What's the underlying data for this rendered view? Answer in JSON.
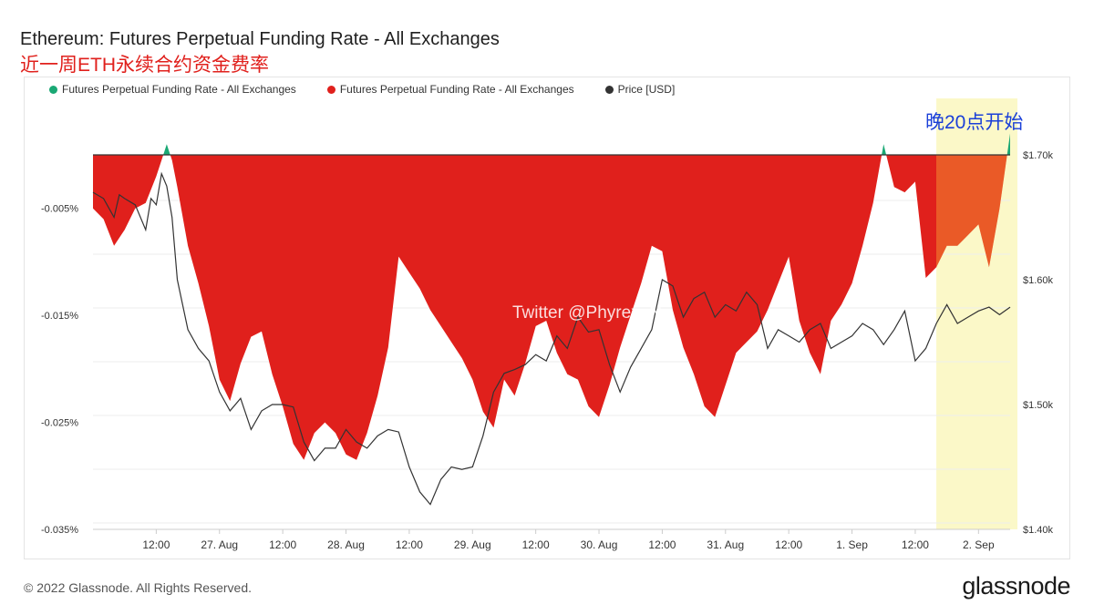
{
  "header": {
    "title": "Ethereum: Futures Perpetual Funding Rate - All Exchanges",
    "subtitle": "近一周ETH永续合约资金费率"
  },
  "chart_data": {
    "type": "area",
    "legend": [
      {
        "name": "Futures Perpetual Funding Rate - All Exchanges",
        "color": "#1aa874"
      },
      {
        "name": "Futures Perpetual Funding Rate - All Exchanges",
        "color": "#e0201c"
      },
      {
        "name": "Price [USD]",
        "color": "#333333"
      }
    ],
    "legend_position": "top-left",
    "x_tick_labels": [
      "12:00",
      "27. Aug",
      "12:00",
      "28. Aug",
      "12:00",
      "29. Aug",
      "12:00",
      "30. Aug",
      "12:00",
      "31. Aug",
      "12:00",
      "1. Sep",
      "12:00",
      "2. Sep"
    ],
    "y_left": {
      "ticks": [
        -0.005,
        -0.015,
        -0.025,
        -0.035
      ],
      "tick_labels": [
        "-0.005%",
        "-0.015%",
        "-0.025%",
        "-0.035%"
      ],
      "range": [
        -0.035,
        0.0
      ]
    },
    "y_right": {
      "ticks": [
        1700,
        1600,
        1500,
        1400
      ],
      "tick_labels": [
        "$1.70k",
        "$1.60k",
        "$1.50k",
        "$1.40k"
      ],
      "range": [
        1400,
        1700
      ]
    },
    "grid": true,
    "x_range_hours": [
      0,
      174
    ],
    "series": [
      {
        "name": "Futures Perpetual Funding Rate - All Exchanges",
        "unit": "%",
        "x_hours": [
          0,
          2,
          4,
          6,
          8,
          10,
          12,
          13,
          14,
          15,
          16,
          18,
          20,
          22,
          24,
          26,
          28,
          30,
          32,
          34,
          36,
          38,
          40,
          42,
          44,
          46,
          48,
          50,
          52,
          54,
          56,
          58,
          60,
          62,
          64,
          66,
          68,
          70,
          72,
          74,
          76,
          78,
          80,
          82,
          84,
          86,
          88,
          90,
          92,
          94,
          96,
          98,
          100,
          102,
          104,
          106,
          108,
          110,
          112,
          114,
          116,
          118,
          120,
          122,
          124,
          126,
          128,
          130,
          132,
          134,
          136,
          138,
          140,
          142,
          144,
          146,
          148,
          150,
          152,
          154,
          156,
          158,
          160,
          162,
          164,
          166,
          168,
          170,
          172,
          174
        ],
        "values": [
          -0.005,
          -0.006,
          -0.0085,
          -0.007,
          -0.005,
          -0.0045,
          -0.002,
          -0.0005,
          0.001,
          -0.0005,
          -0.003,
          -0.0085,
          -0.012,
          -0.016,
          -0.021,
          -0.023,
          -0.0195,
          -0.017,
          -0.0165,
          -0.0205,
          -0.0235,
          -0.027,
          -0.0285,
          -0.026,
          -0.025,
          -0.026,
          -0.028,
          -0.0285,
          -0.026,
          -0.0225,
          -0.018,
          -0.0095,
          -0.011,
          -0.0125,
          -0.0145,
          -0.016,
          -0.0175,
          -0.019,
          -0.021,
          -0.024,
          -0.0255,
          -0.021,
          -0.0225,
          -0.0195,
          -0.016,
          -0.0155,
          -0.0185,
          -0.0205,
          -0.021,
          -0.0235,
          -0.0245,
          -0.0215,
          -0.018,
          -0.015,
          -0.012,
          -0.0085,
          -0.009,
          -0.0145,
          -0.018,
          -0.0205,
          -0.0235,
          -0.0245,
          -0.0215,
          -0.0185,
          -0.0175,
          -0.0165,
          -0.0145,
          -0.012,
          -0.0095,
          -0.0155,
          -0.0185,
          -0.0205,
          -0.0155,
          -0.014,
          -0.012,
          -0.0085,
          -0.0045,
          0.001,
          -0.003,
          -0.0035,
          -0.0025,
          -0.0115,
          -0.0105,
          -0.0085,
          -0.0085,
          -0.0075,
          -0.0065,
          -0.0105,
          -0.005,
          0.002
        ],
        "positive_color": "#1aa874",
        "negative_color": "#e0201c"
      },
      {
        "name": "Price [USD]",
        "unit": "USD",
        "x_hours": [
          0,
          2,
          4,
          5,
          6,
          8,
          10,
          11,
          12,
          13,
          14,
          15,
          16,
          18,
          20,
          22,
          24,
          26,
          28,
          30,
          32,
          34,
          36,
          38,
          40,
          42,
          44,
          46,
          48,
          50,
          52,
          54,
          56,
          58,
          60,
          62,
          64,
          66,
          68,
          70,
          72,
          74,
          76,
          78,
          80,
          82,
          84,
          86,
          88,
          90,
          92,
          94,
          96,
          98,
          100,
          102,
          104,
          106,
          108,
          110,
          112,
          114,
          116,
          118,
          120,
          122,
          124,
          126,
          128,
          130,
          132,
          134,
          136,
          138,
          140,
          142,
          144,
          146,
          148,
          150,
          152,
          154,
          156,
          158,
          160,
          162,
          164,
          166,
          168,
          170,
          172,
          174
        ],
        "values": [
          1670,
          1665,
          1650,
          1668,
          1665,
          1660,
          1640,
          1665,
          1660,
          1685,
          1675,
          1650,
          1600,
          1560,
          1545,
          1535,
          1510,
          1495,
          1505,
          1480,
          1495,
          1500,
          1500,
          1498,
          1470,
          1455,
          1465,
          1465,
          1480,
          1470,
          1465,
          1475,
          1480,
          1478,
          1450,
          1430,
          1420,
          1440,
          1450,
          1448,
          1450,
          1475,
          1510,
          1525,
          1528,
          1532,
          1540,
          1535,
          1555,
          1545,
          1570,
          1558,
          1560,
          1532,
          1510,
          1530,
          1545,
          1560,
          1600,
          1595,
          1570,
          1585,
          1590,
          1570,
          1580,
          1575,
          1590,
          1580,
          1545,
          1560,
          1555,
          1550,
          1560,
          1565,
          1545,
          1550,
          1555,
          1565,
          1560,
          1548,
          1560,
          1575,
          1535,
          1545,
          1565,
          1580,
          1565,
          1570,
          1575,
          1578,
          1572,
          1578
        ]
      }
    ],
    "annotations": [
      {
        "text": "晚20点开始",
        "x_hours_start": 160,
        "x_hours_end": 174,
        "highlight_color": "#fbf8c8"
      },
      {
        "text": "Twitter @Phyrex_Ni"
      }
    ]
  },
  "footer": {
    "copyright": "© 2022 Glassnode. All Rights Reserved.",
    "brand": "glassnode"
  }
}
